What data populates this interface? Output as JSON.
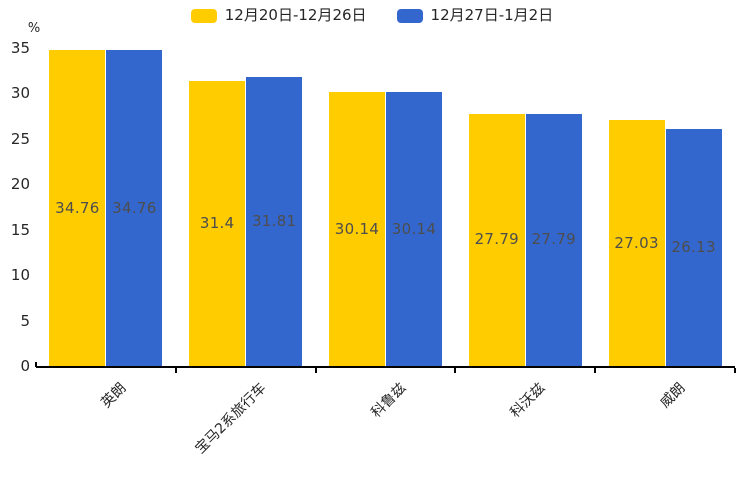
{
  "chart_data": {
    "type": "bar",
    "title": "",
    "xlabel": "",
    "ylabel": "%",
    "unit_label": "%",
    "categories": [
      "英朗",
      "宝马2系旅行车",
      "科鲁兹",
      "科沃兹",
      "威朗"
    ],
    "series": [
      {
        "name": "12月20日-12月26日",
        "color": "#FFCC00",
        "values": [
          34.76,
          31.4,
          30.14,
          27.79,
          27.03
        ]
      },
      {
        "name": "12月27日-1月2日",
        "color": "#3467CD",
        "values": [
          34.76,
          31.81,
          30.14,
          27.79,
          26.13
        ]
      }
    ],
    "yticks": [
      0,
      5,
      10,
      15,
      20,
      25,
      30,
      35
    ],
    "ylim": [
      0,
      35
    ],
    "legend_position": "top",
    "grid": false,
    "value_labels_shown": true
  },
  "colors": {
    "series1": "#FFCC00",
    "series2": "#3467CD",
    "axis": "#000000",
    "axis_text": "#262626",
    "bar_label_text": "#4d4d4d",
    "background": "#ffffff"
  }
}
